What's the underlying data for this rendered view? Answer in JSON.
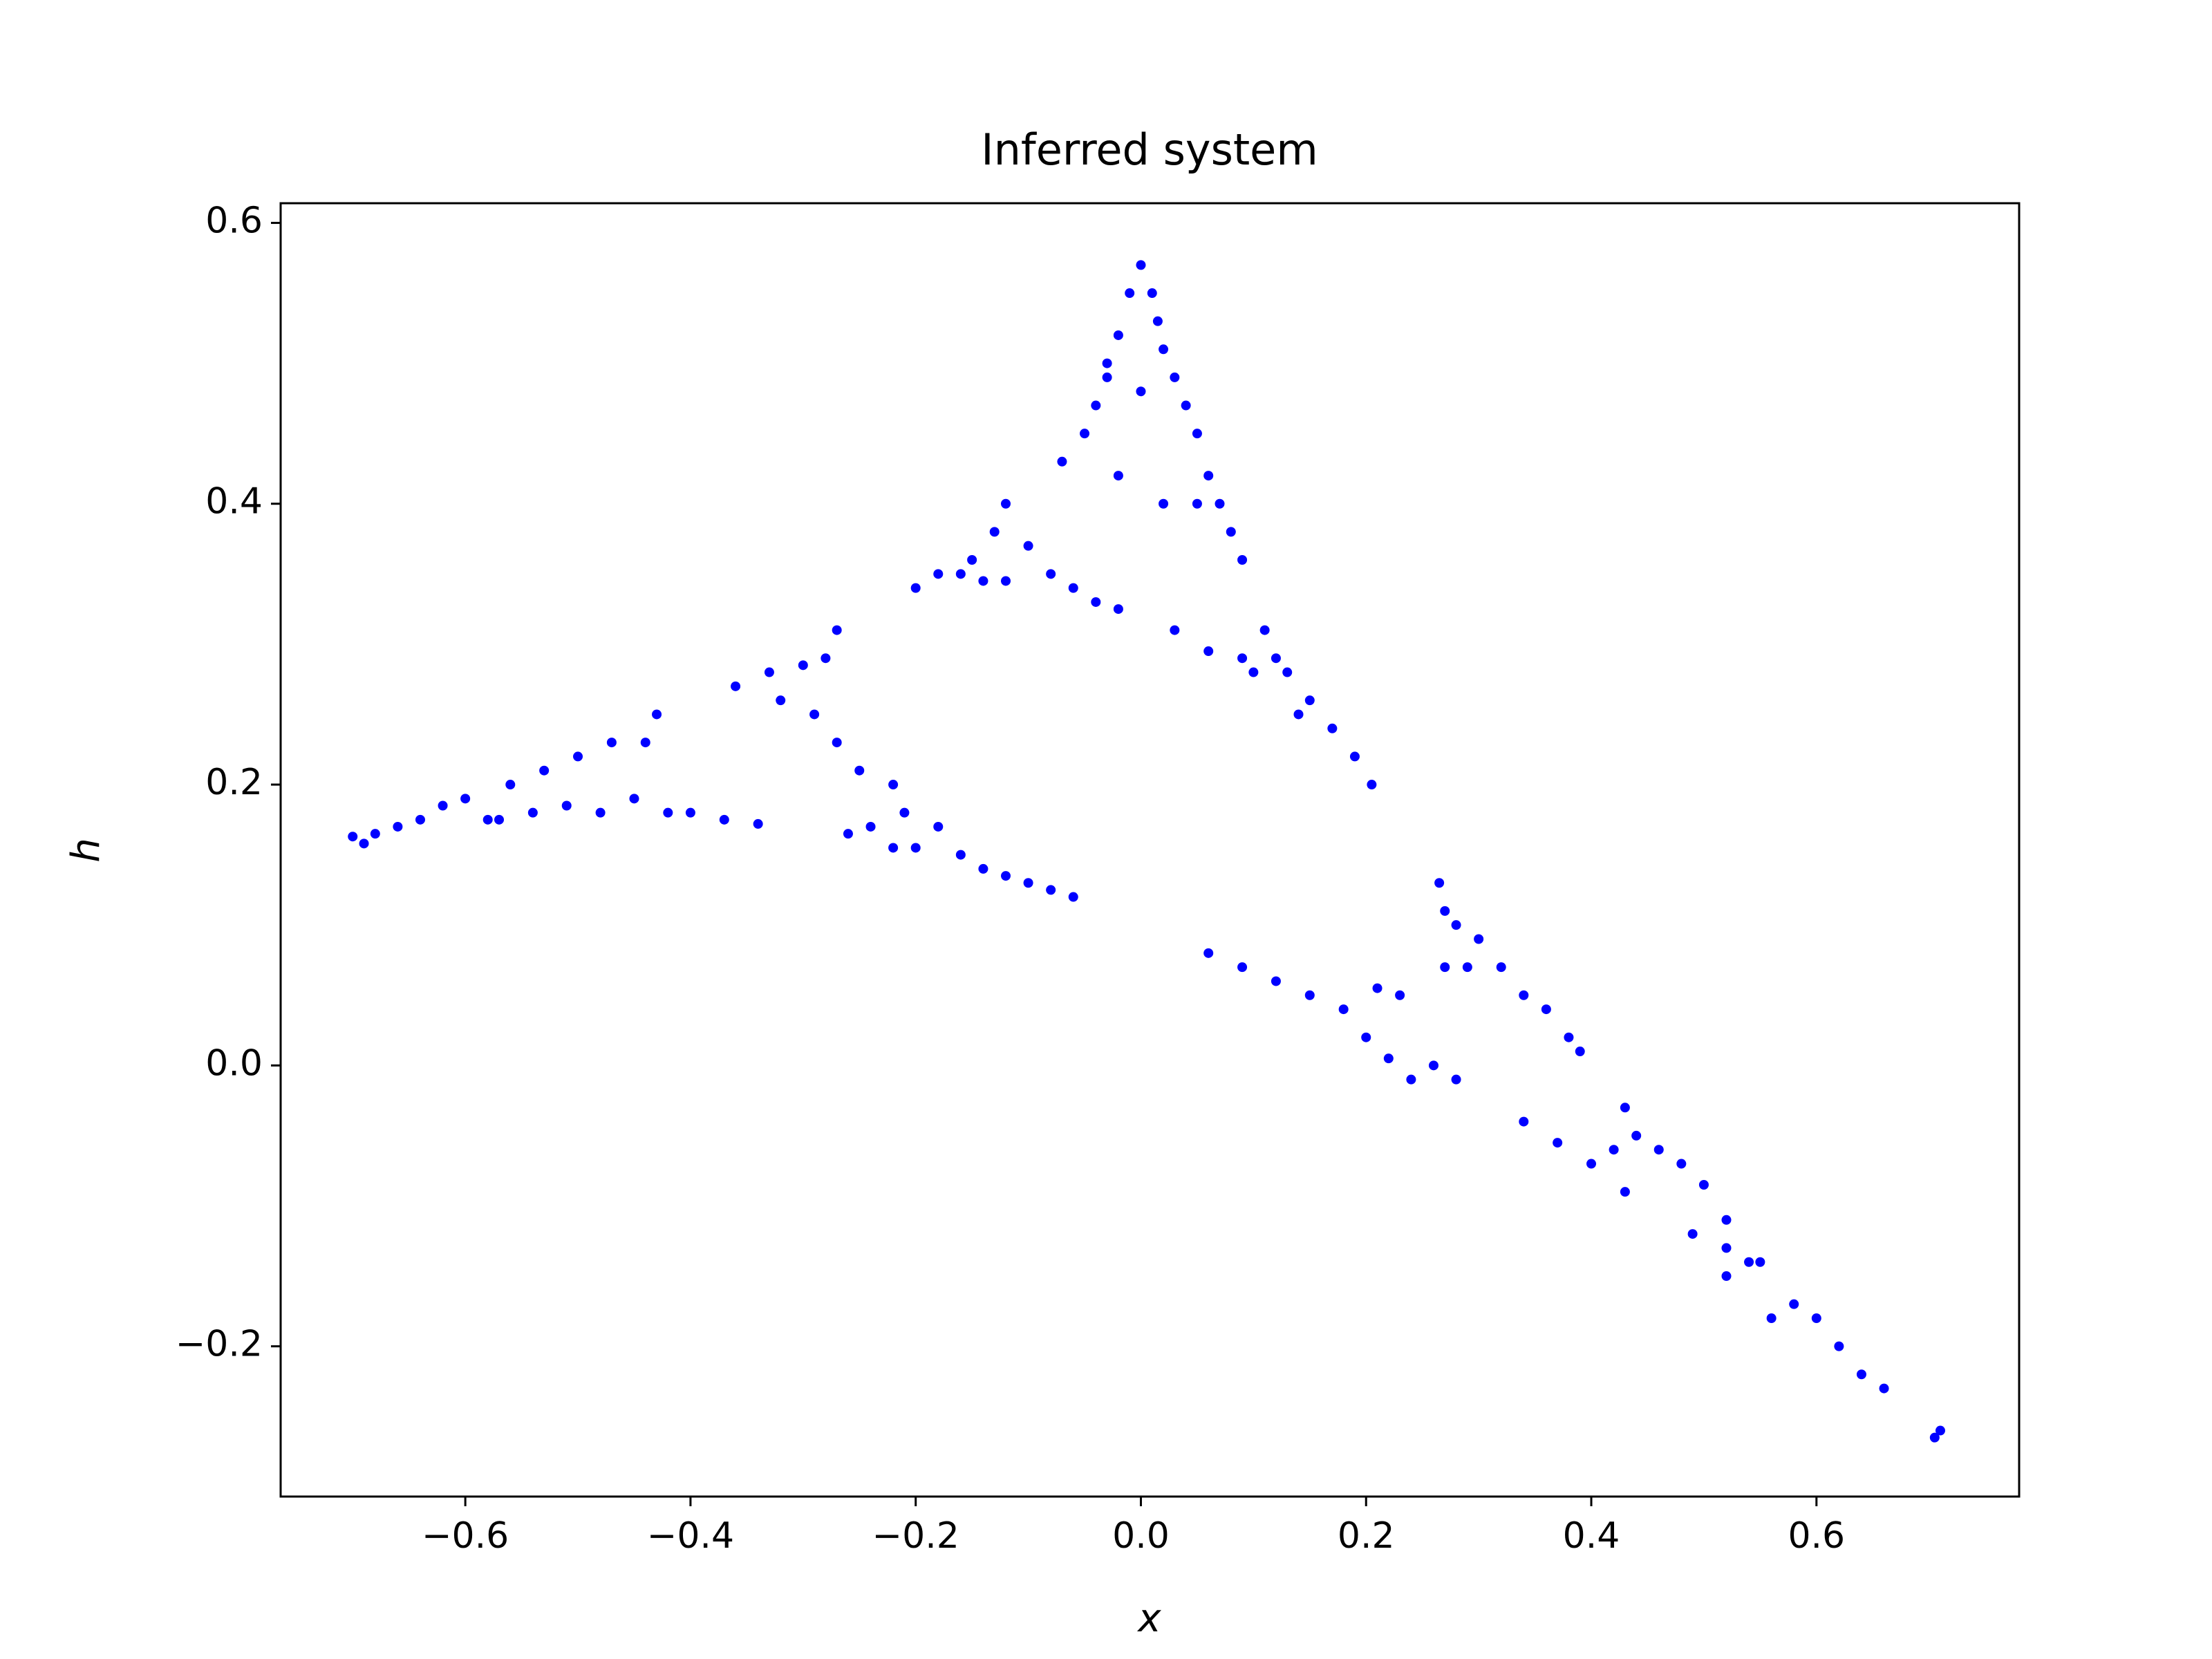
{
  "chart_data": {
    "type": "scatter",
    "title": "Inferred system",
    "x_label": "x",
    "y_label": "h",
    "color": "#0000ff",
    "xlim": [
      -0.764,
      0.78
    ],
    "ylim": [
      -0.307,
      0.614
    ],
    "xticks": [
      {
        "value": -0.6,
        "label": "−0.6"
      },
      {
        "value": -0.4,
        "label": "−0.4"
      },
      {
        "value": -0.2,
        "label": "−0.2"
      },
      {
        "value": 0,
        "label": "0.0"
      },
      0.2,
      0.4,
      0.6
    ],
    "yticks": [
      {
        "value": -0.2,
        "label": "−0.2"
      },
      {
        "value": 0,
        "label": "0.0"
      },
      0.2,
      0.4,
      0.6
    ],
    "x": [
      0.0,
      0.01,
      0.015,
      0.02,
      0.03,
      0.04,
      0.05,
      0.06,
      0.07,
      0.08,
      0.09,
      -0.01,
      -0.02,
      -0.03,
      -0.04,
      -0.05,
      -0.07,
      -0.03,
      0.0,
      -0.02,
      0.02,
      0.05,
      -0.12,
      -0.13,
      -0.15,
      -0.18,
      -0.2,
      -0.16,
      -0.1,
      -0.08,
      -0.06,
      -0.04,
      -0.02,
      -0.12,
      -0.14,
      0.03,
      0.06,
      0.09,
      0.11,
      0.12,
      0.13,
      0.15,
      0.17,
      0.19,
      0.205,
      0.1,
      0.14,
      -0.27,
      -0.28,
      -0.3,
      -0.33,
      -0.36,
      -0.32,
      -0.29,
      -0.27,
      -0.25,
      -0.43,
      -0.44,
      -0.47,
      -0.5,
      -0.45,
      -0.42,
      -0.4,
      -0.37,
      -0.34,
      -0.53,
      -0.56,
      -0.54,
      -0.48,
      -0.51,
      -0.6,
      -0.62,
      -0.58,
      -0.64,
      -0.66,
      -0.68,
      -0.7,
      -0.69,
      -0.57,
      -0.22,
      -0.21,
      -0.24,
      -0.26,
      -0.2,
      -0.18,
      -0.16,
      -0.14,
      -0.12,
      -0.1,
      -0.08,
      -0.06,
      -0.22,
      0.06,
      0.09,
      0.12,
      0.15,
      0.18,
      0.21,
      0.23,
      0.2,
      0.22,
      0.24,
      0.26,
      0.28,
      0.265,
      0.27,
      0.28,
      0.3,
      0.32,
      0.29,
      0.27,
      0.34,
      0.36,
      0.38,
      0.39,
      0.34,
      0.37,
      0.4,
      0.43,
      0.43,
      0.44,
      0.46,
      0.48,
      0.5,
      0.42,
      0.49,
      0.52,
      0.54,
      0.52,
      0.55,
      0.56,
      0.58,
      0.6,
      0.62,
      0.64,
      0.66,
      0.71,
      0.705,
      0.52
    ],
    "values": [
      0.57,
      0.55,
      0.53,
      0.51,
      0.49,
      0.47,
      0.45,
      0.42,
      0.4,
      0.38,
      0.36,
      0.55,
      0.52,
      0.49,
      0.47,
      0.45,
      0.43,
      0.5,
      0.48,
      0.42,
      0.4,
      0.4,
      0.4,
      0.38,
      0.36,
      0.35,
      0.34,
      0.35,
      0.37,
      0.35,
      0.34,
      0.33,
      0.325,
      0.345,
      0.345,
      0.31,
      0.295,
      0.29,
      0.31,
      0.29,
      0.28,
      0.26,
      0.24,
      0.22,
      0.2,
      0.28,
      0.25,
      0.31,
      0.29,
      0.285,
      0.28,
      0.27,
      0.26,
      0.25,
      0.23,
      0.21,
      0.25,
      0.23,
      0.23,
      0.22,
      0.19,
      0.18,
      0.18,
      0.175,
      0.172,
      0.21,
      0.2,
      0.18,
      0.18,
      0.185,
      0.19,
      0.185,
      0.175,
      0.175,
      0.17,
      0.165,
      0.163,
      0.158,
      0.175,
      0.2,
      0.18,
      0.17,
      0.165,
      0.155,
      0.17,
      0.15,
      0.14,
      0.135,
      0.13,
      0.125,
      0.12,
      0.155,
      0.08,
      0.07,
      0.06,
      0.05,
      0.04,
      0.055,
      0.05,
      0.02,
      0.005,
      -0.01,
      0.0,
      -0.01,
      0.13,
      0.11,
      0.1,
      0.09,
      0.07,
      0.07,
      0.07,
      0.05,
      0.04,
      0.02,
      0.01,
      -0.04,
      -0.055,
      -0.07,
      -0.09,
      -0.03,
      -0.05,
      -0.06,
      -0.07,
      -0.085,
      -0.06,
      -0.12,
      -0.13,
      -0.14,
      -0.11,
      -0.14,
      -0.18,
      -0.17,
      -0.18,
      -0.2,
      -0.22,
      -0.23,
      -0.26,
      -0.265,
      -0.15
    ]
  }
}
